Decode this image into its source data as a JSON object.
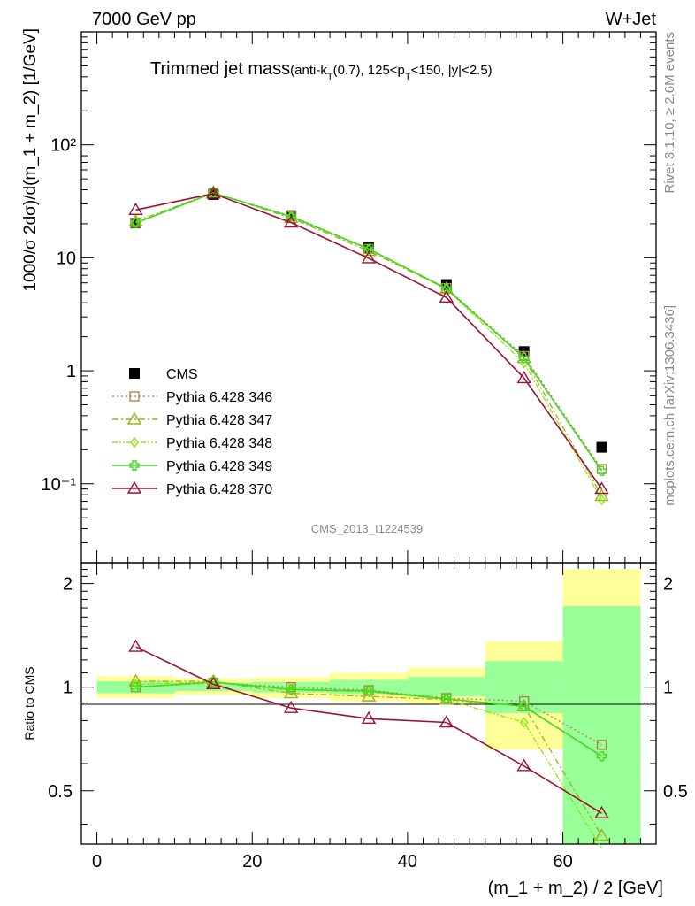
{
  "header": {
    "left": "7000 GeV pp",
    "right": "W+Jet"
  },
  "side_labels": {
    "rivet": "Rivet 3.1.10, ≥ 2.6M events",
    "mcplots": "mcplots.cern.ch [arXiv:1306.3436]"
  },
  "watermark": "CMS_2013_I1224539",
  "chart_data": [
    {
      "type": "line",
      "panel": "main",
      "title_main": "Trimmed jet mass",
      "title_sub": "(anti-kT(0.7), 125<pT<150, |y|<2.5)",
      "xlabel": "(m_1 + m_2) / 2 [GeV]",
      "ylabel": "1000/σ 2dσ)/d(m_1 + m_2) [1/GeV]",
      "xlim": [
        -2,
        72
      ],
      "ylim": [
        0.02,
        1000
      ],
      "yscale": "log",
      "y_ticks": [
        "10⁻¹",
        "1",
        "10",
        "10²"
      ],
      "legend_position": "left-middle",
      "x": [
        5,
        15,
        25,
        35,
        45,
        55,
        65
      ],
      "series": [
        {
          "name": "CMS",
          "color": "#000000",
          "marker": "filled-square",
          "line": "none",
          "values": [
            20.3,
            36.3,
            23.6,
            12.3,
            5.8,
            1.48,
            0.21
          ]
        },
        {
          "name": "Pythia 6.428 346",
          "color": "#b0804f",
          "marker": "open-square",
          "line": "dotted",
          "values": [
            20.4,
            37.5,
            23.5,
            12.0,
            5.4,
            1.35,
            0.135
          ]
        },
        {
          "name": "Pythia 6.428 347",
          "color": "#9cb01c",
          "marker": "open-triangle",
          "line": "dash-dot",
          "values": [
            21.0,
            37.8,
            22.5,
            11.5,
            5.3,
            1.3,
            0.078
          ]
        },
        {
          "name": "Pythia 6.428 348",
          "color": "#88e810",
          "marker": "open-diamond",
          "line": "dash-dot-dot",
          "values": [
            20.6,
            37.6,
            23.0,
            11.9,
            5.3,
            1.17,
            0.072
          ]
        },
        {
          "name": "Pythia 6.428 349",
          "color": "#44d822",
          "marker": "open-cross",
          "line": "solid",
          "values": [
            20.3,
            37.5,
            23.2,
            12.0,
            5.35,
            1.3,
            0.13
          ]
        },
        {
          "name": "Pythia 6.428 370",
          "color": "#9e1030",
          "marker": "open-triangle",
          "line": "solid",
          "values": [
            26.5,
            37.0,
            20.5,
            9.9,
            4.45,
            0.86,
            0.09
          ]
        }
      ]
    },
    {
      "type": "line",
      "panel": "ratio",
      "ylabel": "Ratio to CMS",
      "xlabel": "(m_1 + m_2) / 2 [GeV]",
      "xlim": [
        -2,
        72
      ],
      "ylim": [
        0.35,
        2.3
      ],
      "x_ticks": [
        "0",
        "20",
        "40",
        "60"
      ],
      "y_ticks": [
        "0.5",
        "1",
        "2"
      ],
      "bands": {
        "x_edges": [
          0,
          10,
          20,
          30,
          40,
          50,
          60,
          70
        ],
        "yellow_low": [
          0.93,
          0.95,
          0.93,
          0.91,
          0.89,
          0.66,
          0.35
        ],
        "yellow_high": [
          1.08,
          1.06,
          1.07,
          1.1,
          1.14,
          1.36,
          2.2
        ],
        "green_low": [
          0.96,
          0.975,
          0.965,
          0.955,
          0.94,
          0.84,
          0.35
        ],
        "green_high": [
          1.04,
          1.03,
          1.035,
          1.05,
          1.07,
          1.19,
          1.72
        ],
        "yellow_color": "#ffff99",
        "green_color": "#99ff99"
      },
      "x": [
        5,
        15,
        25,
        35,
        45,
        55,
        65
      ],
      "series": [
        {
          "name": "Pythia 6.428 346",
          "values": [
            1.0,
            1.03,
            1.0,
            0.98,
            0.93,
            0.91,
            0.68
          ]
        },
        {
          "name": "Pythia 6.428 347",
          "values": [
            1.04,
            1.04,
            0.96,
            0.94,
            0.92,
            0.88,
            0.37
          ]
        },
        {
          "name": "Pythia 6.428 348",
          "values": [
            1.02,
            1.035,
            0.98,
            0.97,
            0.92,
            0.79,
            0.34
          ]
        },
        {
          "name": "Pythia 6.428 349",
          "values": [
            1.0,
            1.035,
            0.985,
            0.975,
            0.925,
            0.88,
            0.63
          ]
        },
        {
          "name": "Pythia 6.428 370",
          "values": [
            1.31,
            1.02,
            0.87,
            0.81,
            0.79,
            0.59,
            0.43
          ]
        }
      ]
    }
  ]
}
